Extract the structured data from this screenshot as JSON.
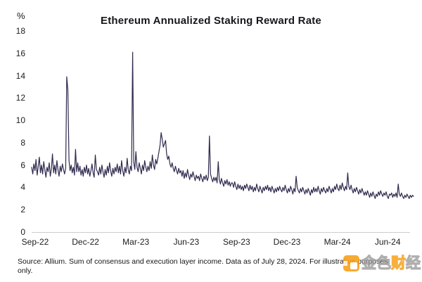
{
  "chart_data": {
    "type": "line",
    "title": "Ethereum Annualized Staking Reward Rate",
    "y_unit_label": "%",
    "xlabel": "",
    "ylabel": "%",
    "ylim": [
      0,
      18
    ],
    "y_ticks": [
      0,
      2,
      4,
      6,
      8,
      10,
      12,
      14,
      16,
      18
    ],
    "x_tick_labels": [
      "Sep-22",
      "Dec-22",
      "Mar-23",
      "Jun-23",
      "Sep-23",
      "Dec-23",
      "Mar-24",
      "Jun-24"
    ],
    "x_range": [
      "2022-09-01",
      "2024-07-28"
    ],
    "x_interval_days": 2,
    "grid": "off",
    "legend_position": "none",
    "line_color": "#2e2a4d",
    "axis_line_color": "#cdcdcd",
    "values": [
      5.8,
      5.2,
      6.1,
      5.5,
      6.5,
      5.1,
      5.9,
      6.7,
      5.3,
      6.0,
      5.2,
      6.3,
      5.6,
      4.9,
      5.8,
      5.4,
      6.2,
      5.0,
      5.7,
      7.0,
      5.3,
      6.0,
      5.2,
      6.4,
      5.6,
      5.0,
      5.9,
      5.4,
      6.1,
      5.6,
      5.2,
      5.7,
      13.9,
      12.7,
      6.4,
      5.5,
      6.0,
      5.3,
      5.8,
      5.1,
      7.4,
      5.4,
      6.2,
      5.4,
      5.9,
      5.1,
      5.6,
      5.0,
      5.8,
      5.3,
      6.0,
      5.2,
      5.7,
      5.0,
      5.5,
      6.1,
      5.3,
      4.9,
      6.9,
      5.6,
      5.4,
      5.1,
      5.8,
      5.2,
      6.0,
      5.4,
      4.9,
      5.6,
      5.1,
      5.9,
      5.3,
      6.2,
      5.5,
      5.0,
      5.7,
      5.2,
      5.8,
      5.4,
      6.1,
      5.3,
      5.9,
      5.2,
      6.4,
      5.5,
      5.0,
      5.8,
      5.3,
      6.6,
      5.6,
      5.2,
      5.9,
      5.5,
      16.1,
      6.3,
      5.6,
      7.2,
      5.8,
      5.4,
      6.2,
      5.7,
      5.2,
      6.0,
      5.5,
      6.4,
      5.8,
      5.4,
      5.9,
      5.5,
      6.3,
      5.7,
      6.9,
      6.0,
      5.6,
      6.5,
      6.1,
      6.6,
      7.2,
      7.8,
      8.9,
      8.3,
      7.6,
      7.9,
      8.2,
      7.0,
      6.5,
      6.8,
      6.1,
      5.8,
      6.2,
      5.7,
      5.4,
      5.9,
      5.5,
      5.2,
      5.7,
      5.3,
      5.5,
      5.0,
      5.5,
      4.8,
      5.3,
      4.9,
      5.6,
      5.1,
      4.7,
      5.2,
      4.9,
      5.4,
      5.0,
      4.6,
      5.1,
      4.8,
      5.0,
      4.6,
      5.2,
      4.8,
      4.5,
      5.0,
      4.7,
      5.1,
      4.6,
      4.9,
      8.6,
      5.2,
      4.8,
      4.5,
      4.9,
      4.6,
      4.9,
      4.4,
      6.3,
      4.7,
      4.3,
      4.8,
      4.4,
      4.1,
      4.6,
      4.3,
      4.7,
      4.2,
      4.5,
      4.1,
      4.4,
      4.4,
      4.0,
      4.5,
      4.1,
      3.8,
      4.3,
      3.9,
      4.2,
      3.8,
      4.1,
      3.7,
      4.2,
      3.9,
      4.3,
      4.0,
      3.7,
      4.2,
      3.8,
      4.1,
      3.6,
      4.0,
      3.7,
      4.3,
      3.9,
      3.6,
      4.1,
      3.8,
      3.5,
      4.0,
      3.7,
      4.1,
      3.8,
      4.2,
      3.7,
      4.0,
      3.6,
      4.1,
      3.8,
      3.5,
      3.9,
      3.6,
      4.0,
      3.7,
      4.1,
      3.8,
      3.6,
      4.0,
      3.7,
      4.2,
      3.8,
      3.5,
      3.9,
      3.6,
      4.1,
      3.8,
      3.4,
      3.9,
      3.6,
      5.0,
      4.0,
      3.7,
      3.5,
      3.9,
      3.6,
      4.0,
      3.7,
      3.4,
      3.8,
      3.5,
      3.9,
      3.6,
      3.3,
      3.8,
      3.5,
      4.0,
      3.6,
      3.9,
      3.6,
      4.1,
      3.7,
      3.4,
      3.9,
      3.6,
      4.0,
      3.7,
      3.5,
      3.9,
      3.6,
      4.1,
      3.8,
      3.5,
      3.9,
      3.6,
      4.1,
      3.8,
      4.3,
      3.9,
      3.7,
      4.2,
      3.8,
      4.4,
      4.0,
      3.7,
      4.1,
      3.8,
      5.3,
      4.1,
      3.8,
      4.2,
      3.8,
      3.5,
      3.9,
      3.6,
      4.0,
      3.7,
      3.4,
      3.8,
      3.5,
      3.9,
      3.6,
      3.3,
      3.6,
      3.3,
      3.7,
      3.4,
      3.1,
      3.5,
      3.2,
      3.6,
      3.3,
      3.0,
      3.4,
      3.2,
      3.6,
      3.3,
      3.7,
      3.4,
      3.2,
      3.5,
      3.3,
      3.6,
      3.2,
      3.0,
      3.4,
      3.3,
      3.5,
      3.1,
      3.4,
      3.2,
      3.5,
      3.1,
      4.3,
      3.4,
      3.2,
      3.5,
      3.2,
      3.0,
      3.3,
      3.1,
      3.4,
      3.2,
      3.0,
      3.3,
      3.1,
      3.3,
      3.2
    ]
  },
  "footer": {
    "source_text": "Source: Allium. Sum of consensus and execution layer income. Data as of July 28, 2024. For illustrative purposes only."
  },
  "watermark": {
    "text": "金色财经",
    "accent_color": "#f7a21c"
  }
}
